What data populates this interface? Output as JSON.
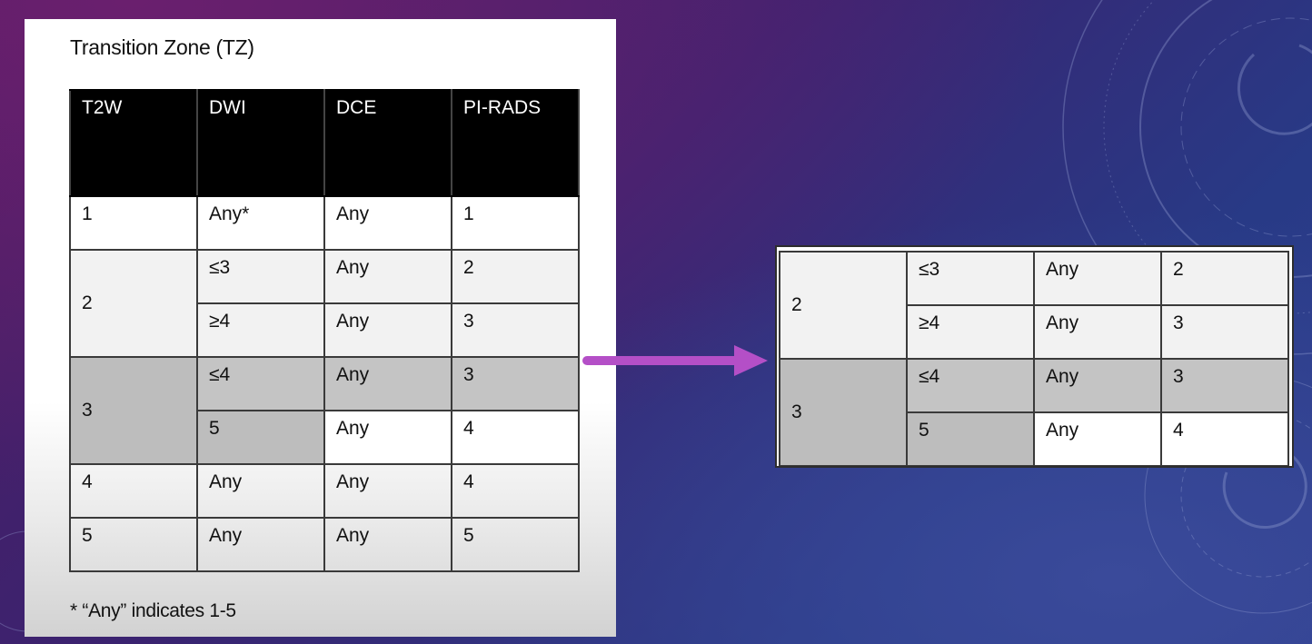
{
  "slide": {
    "title": "Transition Zone (TZ)",
    "footnote": "* “Any” indicates 1-5"
  },
  "table": {
    "headers": [
      "T2W",
      "DWI",
      "DCE",
      "PI-RADS"
    ],
    "rows": [
      {
        "t2w": "1",
        "dwi": "Any*",
        "dce": "Any",
        "pirads": "1"
      },
      {
        "t2w": "2",
        "dwi": "≤3",
        "dce": "Any",
        "pirads": "2"
      },
      {
        "t2w": "",
        "dwi": "≥4",
        "dce": "Any",
        "pirads": "3"
      },
      {
        "t2w": "3",
        "dwi": "≤4",
        "dce": "Any",
        "pirads": "3"
      },
      {
        "t2w": "",
        "dwi": "5",
        "dce": "Any",
        "pirads": "4"
      },
      {
        "t2w": "4",
        "dwi": "Any",
        "dce": "Any",
        "pirads": "4"
      },
      {
        "t2w": "5",
        "dwi": "Any",
        "dce": "Any",
        "pirads": "5"
      }
    ]
  },
  "excerpt": {
    "rows": [
      {
        "t2w": "2",
        "dwi": "≤3",
        "dce": "Any",
        "pirads": "2"
      },
      {
        "t2w": "",
        "dwi": "≥4",
        "dce": "Any",
        "pirads": "3"
      },
      {
        "t2w": "3",
        "dwi": "≤4",
        "dce": "Any",
        "pirads": "3"
      },
      {
        "t2w": "",
        "dwi": "5",
        "dce": "Any",
        "pirads": "4"
      }
    ]
  },
  "colors": {
    "arrow": "#b44fc7",
    "header_bg": "#000000",
    "highlight_row": "#c4c4c4",
    "background_purple": "#4e1d63",
    "background_blue": "#2f3f8e"
  },
  "icons": {
    "arrow": "right-arrow-icon",
    "decoration": "dial-rings-decoration"
  }
}
